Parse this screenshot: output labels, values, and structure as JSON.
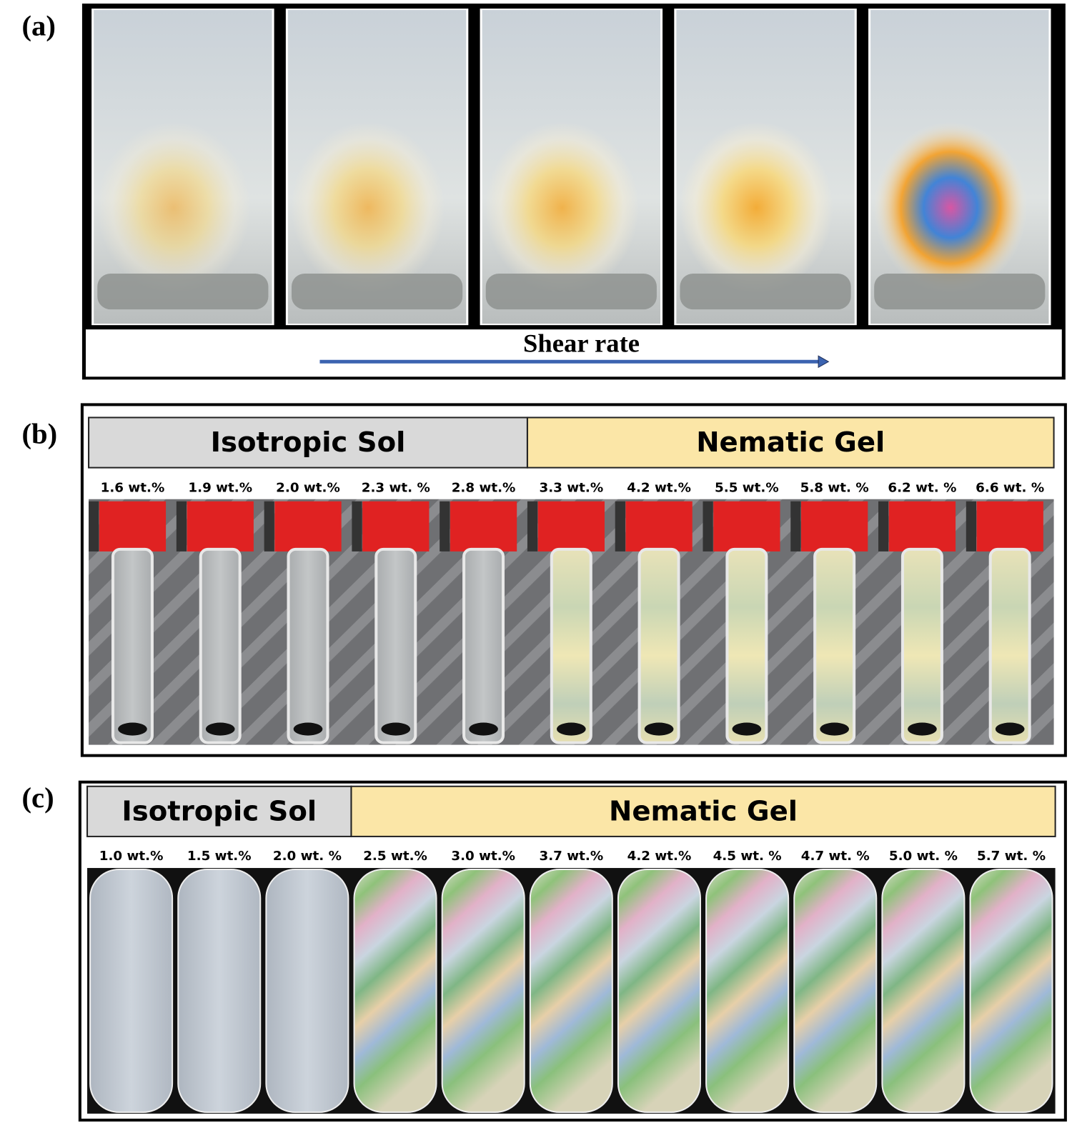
{
  "panels": [
    {
      "label": "(a)",
      "axis_label": "Shear rate"
    },
    {
      "label": "(b)",
      "groups": [
        {
          "name": "Isotropic Sol",
          "samples": [
            "1.6 wt.%",
            "1.9 wt.%",
            "2.0 wt.%",
            "2.3 wt. %",
            "2.8 wt.%"
          ]
        },
        {
          "name": "Nematic Gel",
          "samples": [
            "3.3 wt.%",
            "4.2 wt.%",
            "5.5 wt.%",
            "5.8 wt. %",
            "6.2 wt. %",
            "6.6 wt. %"
          ]
        }
      ]
    },
    {
      "label": "(c)",
      "groups": [
        {
          "name": "Isotropic Sol",
          "samples": [
            "1.0 wt.%",
            "1.5 wt.%",
            "2.0 wt. %"
          ]
        },
        {
          "name": "Nematic Gel",
          "samples": [
            "2.5 wt.%",
            "3.0 wt.%",
            "3.7 wt.%",
            "4.2 wt.%",
            "4.5 wt. %",
            "4.7 wt. %",
            "5.0 wt. %",
            "5.7 wt. %"
          ]
        }
      ]
    }
  ]
}
